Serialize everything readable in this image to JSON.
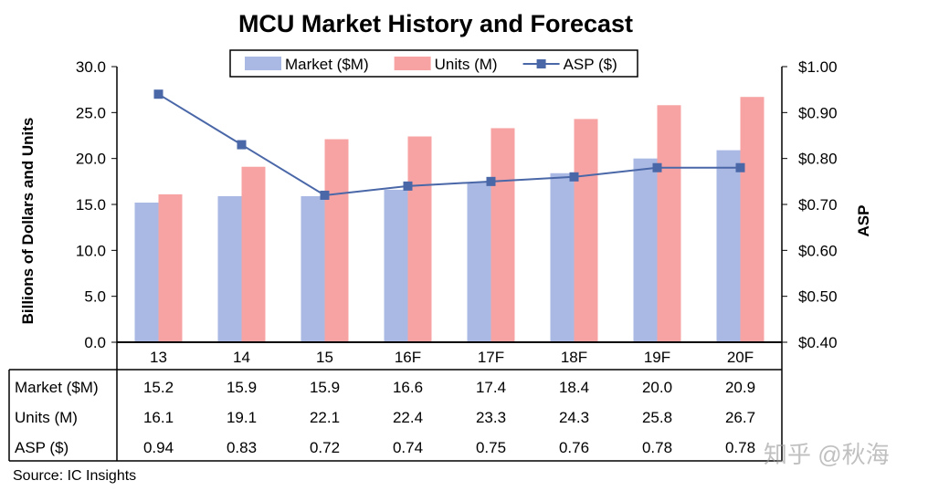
{
  "chart_data": {
    "type": "bar",
    "title": "MCU Market History and Forecast",
    "categories": [
      "13",
      "14",
      "15",
      "16F",
      "17F",
      "18F",
      "19F",
      "20F"
    ],
    "series": [
      {
        "name": "Market ($M)",
        "kind": "bar",
        "axis": "left",
        "color": "#a9b9e3",
        "values": [
          15.2,
          15.9,
          15.9,
          16.6,
          17.4,
          18.4,
          20.0,
          20.9
        ]
      },
      {
        "name": "Units (M)",
        "kind": "bar",
        "axis": "left",
        "color": "#f7a3a3",
        "values": [
          16.1,
          19.1,
          22.1,
          22.4,
          23.3,
          24.3,
          25.8,
          26.7
        ]
      },
      {
        "name": "ASP ($)",
        "kind": "line",
        "axis": "right",
        "color": "#4a67a8",
        "marker": "square",
        "values": [
          0.94,
          0.83,
          0.72,
          0.74,
          0.75,
          0.76,
          0.78,
          0.78
        ]
      }
    ],
    "table_values": {
      "ASP ($)": [
        "0.94",
        "0.83",
        "0.72",
        "0.74",
        "0.75",
        "0.76",
        "0.78",
        "0.78"
      ],
      "Market ($M)": [
        "15.2",
        "15.9",
        "15.9",
        "16.6",
        "17.4",
        "18.4",
        "20.0",
        "20.9"
      ],
      "Units (M)": [
        "16.1",
        "19.1",
        "22.1",
        "22.4",
        "23.3",
        "24.3",
        "25.8",
        "26.7"
      ]
    },
    "ylabel": "Billions of Dollars and Units",
    "ylim": [
      0,
      30
    ],
    "yticks": [
      "0.0",
      "5.0",
      "10.0",
      "15.0",
      "20.0",
      "25.0",
      "30.0"
    ],
    "y2label": "ASP",
    "y2lim": [
      0.4,
      1.0
    ],
    "y2ticks": [
      "$0.40",
      "$0.50",
      "$0.60",
      "$0.70",
      "$0.80",
      "$0.90",
      "$1.00"
    ],
    "legend": "top",
    "grid": false,
    "source": "Source:  IC Insights"
  },
  "watermark": "知乎 @秋海"
}
